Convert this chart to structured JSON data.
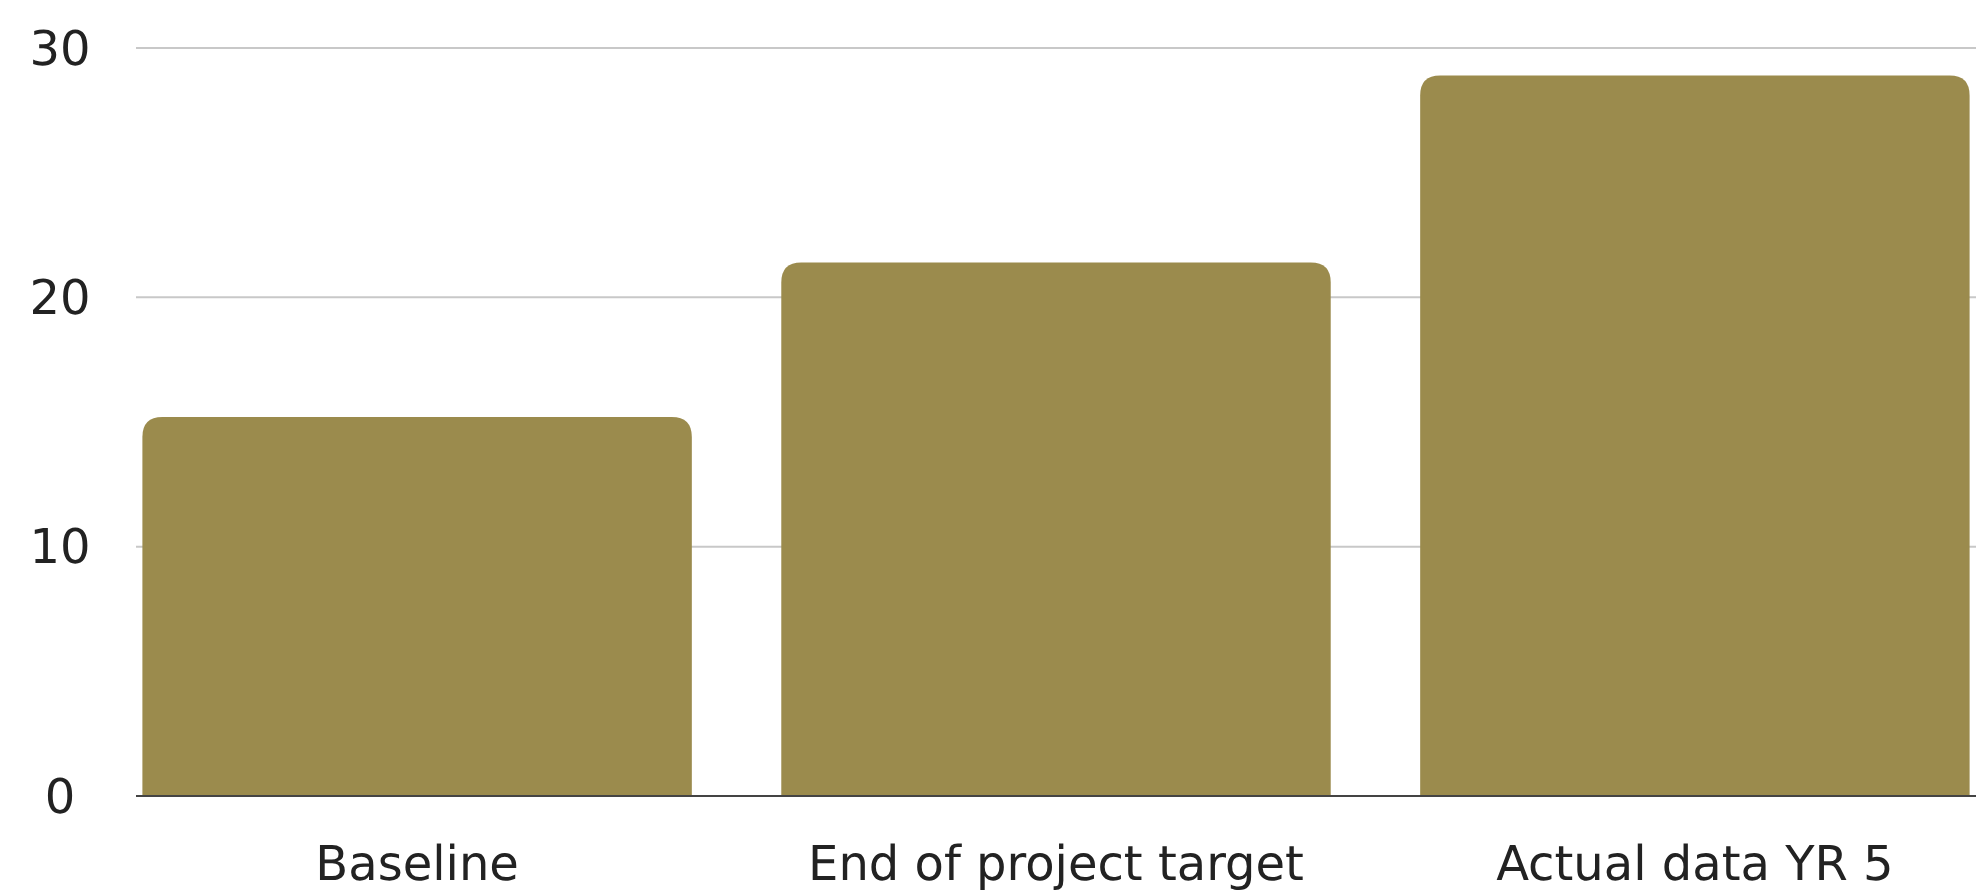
{
  "chart_data": {
    "type": "bar",
    "categories": [
      "Baseline",
      "End of project target",
      "Actual data YR 5"
    ],
    "values": [
      15.2,
      21.4,
      28.9
    ],
    "color": "#9b8b4d",
    "ylim": [
      0,
      30
    ],
    "yticks": [
      0,
      10,
      20,
      30
    ],
    "grid": true
  }
}
